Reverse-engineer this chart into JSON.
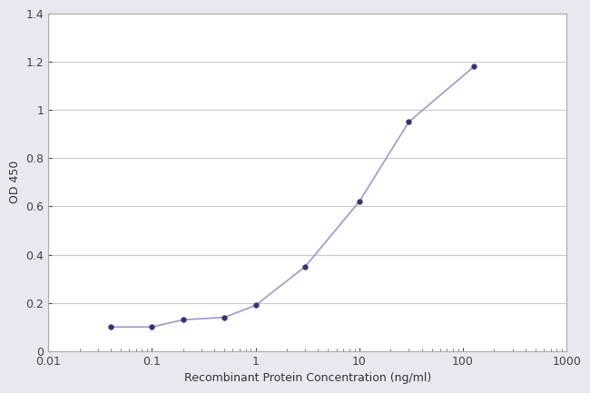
{
  "x": [
    0.04,
    0.1,
    0.2,
    0.5,
    1.0,
    3.0,
    10.0,
    30.0,
    128.0
  ],
  "y": [
    0.1,
    0.1,
    0.13,
    0.14,
    0.19,
    0.35,
    0.62,
    0.95,
    1.18
  ],
  "line_color": "#9999cc",
  "marker_color": "#333377",
  "marker_size": 4,
  "line_width": 1.2,
  "xlabel": "Recombinant Protein Concentration (ng/ml)",
  "ylabel": "OD 450",
  "ylim": [
    0,
    1.4
  ],
  "yticks": [
    0,
    0.2,
    0.4,
    0.6,
    0.8,
    1.0,
    1.2,
    1.4
  ],
  "ytick_labels": [
    "0",
    "0.2",
    "0.4",
    "0.6",
    "0.8",
    "1",
    "1.2",
    "1.4"
  ],
  "xlim_log": [
    0.01,
    1000
  ],
  "xtick_positions": [
    0.01,
    0.1,
    1,
    10,
    100,
    1000
  ],
  "xtick_labels": [
    "0.01",
    "0.1",
    "1",
    "10",
    "100",
    "1000"
  ],
  "background_color": "#e8e8f0",
  "plot_bg_color": "#ffffff",
  "grid_color": "#c8c8c8",
  "label_fontsize": 9,
  "tick_fontsize": 9
}
